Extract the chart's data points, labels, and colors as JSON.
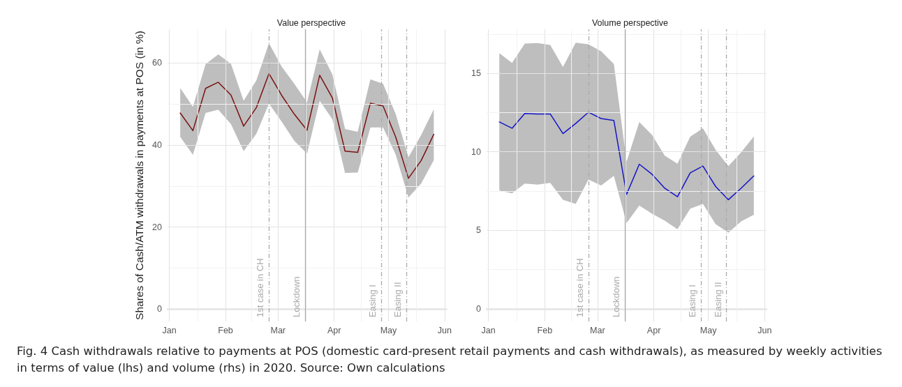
{
  "chart_data": [
    {
      "type": "line",
      "title": "Value perspective",
      "ylabel": "Shares of Cash/ATM withdrawals in payments at POS (in %)",
      "x": [
        "2020-01-07",
        "2020-01-14",
        "2020-01-21",
        "2020-01-28",
        "2020-02-04",
        "2020-02-11",
        "2020-02-18",
        "2020-02-25",
        "2020-03-03",
        "2020-03-10",
        "2020-03-17",
        "2020-03-24",
        "2020-03-31",
        "2020-04-07",
        "2020-04-14",
        "2020-04-21",
        "2020-04-28",
        "2020-05-05",
        "2020-05-12",
        "2020-05-19",
        "2020-05-26"
      ],
      "series": [
        {
          "color": "#7b1010",
          "values": [
            47.8,
            43.5,
            53.8,
            55.3,
            52.2,
            44.6,
            49.1,
            57.4,
            52.1,
            47.5,
            43.6,
            57.0,
            51.5,
            38.5,
            38.2,
            50.2,
            49.5,
            41.9,
            31.9,
            36.2,
            42.6
          ],
          "lower": [
            42.0,
            37.6,
            47.8,
            48.6,
            45.1,
            38.5,
            42.7,
            50.1,
            45.7,
            41.0,
            37.9,
            50.8,
            46.3,
            33.2,
            33.3,
            44.3,
            44.3,
            37.6,
            27.2,
            30.6,
            36.3
          ],
          "upper": [
            53.9,
            49.3,
            59.7,
            62.1,
            59.8,
            50.8,
            55.7,
            64.8,
            59.1,
            54.9,
            50.4,
            63.3,
            57.2,
            43.9,
            43.2,
            56.0,
            54.9,
            47.5,
            37.0,
            42.4,
            48.7
          ]
        }
      ],
      "xlim": [
        "2019-12-31",
        "2020-06-02"
      ],
      "xticks": [
        {
          "value": "2020-01-01",
          "label": "Jan"
        },
        {
          "value": "2020-02-01",
          "label": "Feb"
        },
        {
          "value": "2020-03-01",
          "label": "Mar"
        },
        {
          "value": "2020-04-01",
          "label": "Apr"
        },
        {
          "value": "2020-05-01",
          "label": "May"
        },
        {
          "value": "2020-06-01",
          "label": "Jun"
        }
      ],
      "ylim": [
        -3,
        68.2
      ],
      "yticks": [
        0,
        20,
        40,
        60
      ],
      "grid": true,
      "marker": "none",
      "line_style": "solid",
      "ref_lines": [
        {
          "axis": "x",
          "value": "2020-02-25",
          "label": "1st case in CH",
          "color": "#aaaaaa",
          "line_style": "dashed"
        },
        {
          "axis": "x",
          "value": "2020-03-16",
          "label": "Lockdown",
          "color": "#aaaaaa",
          "line_style": "solid"
        },
        {
          "axis": "x",
          "value": "2020-04-27",
          "label": "Easing I",
          "color": "#aaaaaa",
          "line_style": "dashed"
        },
        {
          "axis": "x",
          "value": "2020-05-11",
          "label": "Easing II",
          "color": "#aaaaaa",
          "line_style": "dashed"
        }
      ],
      "annotations": [
        "Fig. 4 Cash withdrawals relative to payments at POS (domestic card-present retail payments and cash withdrawals), as measured by weekly activities in terms of value (lhs) and volume (rhs) in 2020. Source: Own calculations"
      ]
    },
    {
      "type": "line",
      "title": "Volume perspective",
      "x": [
        "2020-01-07",
        "2020-01-14",
        "2020-01-21",
        "2020-01-28",
        "2020-02-04",
        "2020-02-11",
        "2020-02-18",
        "2020-02-25",
        "2020-03-03",
        "2020-03-10",
        "2020-03-17",
        "2020-03-24",
        "2020-03-31",
        "2020-04-07",
        "2020-04-14",
        "2020-04-21",
        "2020-04-28",
        "2020-05-05",
        "2020-05-12",
        "2020-05-19",
        "2020-05-26"
      ],
      "series": [
        {
          "color": "#1414c8",
          "values": [
            11.9,
            11.5,
            12.44,
            12.41,
            12.41,
            11.16,
            11.8,
            12.52,
            12.12,
            12.0,
            7.29,
            9.21,
            8.57,
            7.68,
            7.14,
            8.66,
            9.09,
            7.79,
            6.95,
            7.68,
            8.47
          ],
          "lower": [
            7.54,
            7.36,
            7.98,
            7.91,
            8.02,
            6.95,
            6.68,
            8.23,
            7.86,
            8.47,
            5.47,
            6.58,
            6.06,
            5.62,
            5.07,
            6.38,
            6.68,
            5.39,
            4.85,
            5.57,
            5.99
          ],
          "upper": [
            16.28,
            15.66,
            16.89,
            16.92,
            16.8,
            15.4,
            16.95,
            16.85,
            16.4,
            15.59,
            9.38,
            11.9,
            11.08,
            9.75,
            9.24,
            10.96,
            11.5,
            10.12,
            9.09,
            9.97,
            10.98
          ]
        }
      ],
      "xlim": [
        "2019-12-31",
        "2020-06-02"
      ],
      "xticks": [
        {
          "value": "2020-01-01",
          "label": "Jan"
        },
        {
          "value": "2020-02-01",
          "label": "Feb"
        },
        {
          "value": "2020-03-01",
          "label": "Mar"
        },
        {
          "value": "2020-04-01",
          "label": "Apr"
        },
        {
          "value": "2020-05-01",
          "label": "May"
        },
        {
          "value": "2020-06-01",
          "label": "Jun"
        }
      ],
      "ylim": [
        -0.8,
        17.8
      ],
      "yticks": [
        0,
        5,
        10,
        15
      ],
      "grid": true,
      "marker": "none",
      "line_style": "solid",
      "ref_lines": [
        {
          "axis": "x",
          "value": "2020-02-25",
          "label": "1st case in CH",
          "color": "#aaaaaa",
          "line_style": "dashed"
        },
        {
          "axis": "x",
          "value": "2020-03-16",
          "label": "Lockdown",
          "color": "#aaaaaa",
          "line_style": "solid"
        },
        {
          "axis": "x",
          "value": "2020-04-27",
          "label": "Easing I",
          "color": "#aaaaaa",
          "line_style": "dashed"
        },
        {
          "axis": "x",
          "value": "2020-05-11",
          "label": "Easing II",
          "color": "#aaaaaa",
          "line_style": "dashed"
        }
      ]
    }
  ]
}
